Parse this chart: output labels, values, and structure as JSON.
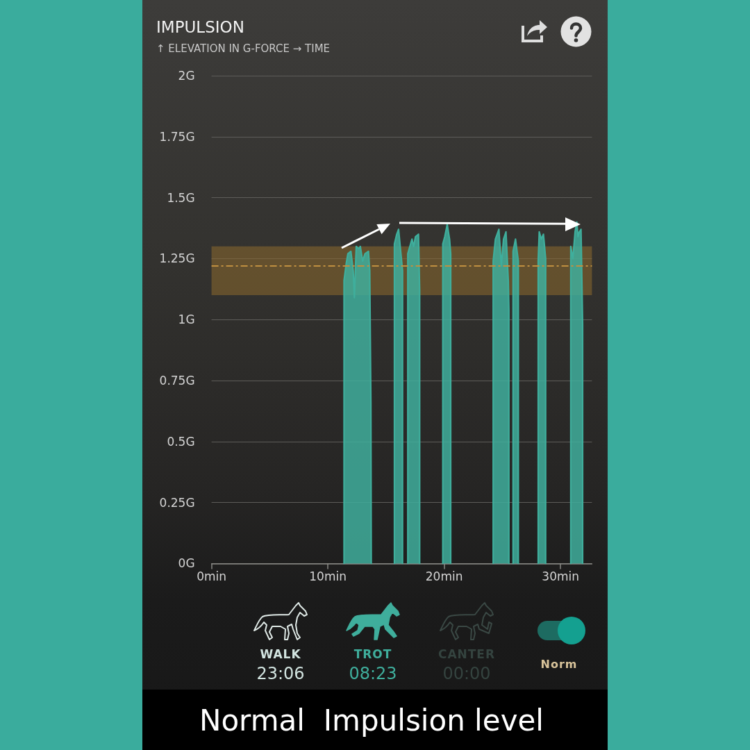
{
  "chart_data": {
    "type": "area",
    "title": "IMPULSION",
    "subtitle": "↑ ELEVATION IN G-FORCE → TIME",
    "series": [
      {
        "color": "#3fae9c",
        "x": [
          11.39,
          11.39,
          11.58,
          11.72,
          11.98,
          12.18,
          12.28,
          12.44,
          12.65,
          12.79,
          12.99,
          13.19,
          13.49,
          13.6,
          13.7,
          13.73,
          14.7,
          15.72,
          15.72,
          15.92,
          16.08,
          16.28,
          16.42,
          16.42,
          16.6,
          16.87,
          16.87,
          17.23,
          17.37,
          17.53,
          17.79,
          17.89,
          17.89,
          19,
          19.88,
          19.88,
          20.05,
          20.26,
          20.46,
          20.56,
          20.56,
          22,
          24.21,
          24.21,
          24.4,
          24.7,
          24.91,
          25.1,
          25.31,
          25.51,
          25.56,
          25.56,
          25.75,
          25.92,
          25.92,
          26.13,
          26.37,
          26.37,
          27,
          28.08,
          28.08,
          28.17,
          28.35,
          28.53,
          28.72,
          28.72,
          30,
          30.88,
          30.88,
          31.06,
          31.25,
          31.4,
          31.5,
          31.62,
          31.76,
          31.9,
          31.9
        ],
        "values": [
          0,
          1.16,
          1.23,
          1.27,
          1.28,
          1.2,
          1.09,
          1.3,
          1.29,
          1.3,
          1.24,
          1.27,
          1.28,
          1.2,
          0.66,
          0,
          null,
          0,
          1.31,
          1.35,
          1.37,
          1.27,
          1.2,
          0,
          null,
          0,
          1.27,
          1.33,
          1.3,
          1.34,
          1.35,
          1.12,
          0,
          null,
          0,
          1.31,
          1.34,
          1.39,
          1.33,
          1.27,
          0,
          null,
          0,
          1.24,
          1.33,
          1.37,
          1.22,
          1.33,
          1.36,
          1.16,
          1.04,
          0,
          null,
          0,
          1.28,
          1.33,
          1.24,
          0,
          null,
          0,
          1.24,
          1.36,
          1.33,
          1.35,
          1.25,
          0,
          null,
          0,
          1.3,
          1.25,
          1.36,
          1.4,
          1.34,
          1.36,
          1.37,
          0.98,
          0
        ]
      }
    ],
    "xlim": [
      0,
      32.7
    ],
    "xticks": [
      {
        "value": 0,
        "label": "0min"
      },
      {
        "value": 10,
        "label": "10min"
      },
      {
        "value": 20,
        "label": "20min"
      },
      {
        "value": 30,
        "label": "30min"
      }
    ],
    "ylim": [
      0,
      2
    ],
    "yticks": [
      {
        "value": 0,
        "label": "0G"
      },
      {
        "value": 0.25,
        "label": "0.25G"
      },
      {
        "value": 0.5,
        "label": "0.5G"
      },
      {
        "value": 0.75,
        "label": "0.75G"
      },
      {
        "value": 1,
        "label": "1G"
      },
      {
        "value": 1.25,
        "label": "1.25G"
      },
      {
        "value": 1.5,
        "label": "1.5G"
      },
      {
        "value": 1.75,
        "label": "1.75G"
      },
      {
        "value": 2,
        "label": "2G"
      }
    ],
    "grid": "y",
    "marker": "none",
    "bands": [
      {
        "axis": "y",
        "from": 1.1,
        "to": 1.3,
        "color": "#8c6a2e"
      }
    ],
    "ref_lines": [
      {
        "axis": "y",
        "value": 1.22,
        "color": "#c09040",
        "line_style": "dashed"
      }
    ],
    "annotations": [
      "WALK",
      "23:06",
      "TROT",
      "08:23",
      "CANTER",
      "00:00",
      "Norm",
      "Normal  Impulsion level"
    ]
  }
}
